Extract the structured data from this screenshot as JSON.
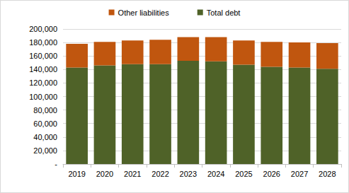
{
  "chart_data": {
    "type": "bar",
    "stacked": true,
    "legend": "top",
    "grid": true,
    "categories": [
      "2019",
      "2020",
      "2021",
      "2022",
      "2023",
      "2024",
      "2025",
      "2026",
      "2027",
      "2028"
    ],
    "series": [
      {
        "name": "Total debt",
        "color": "#4f6228",
        "values": [
          143000,
          146000,
          148000,
          148000,
          153000,
          152000,
          147000,
          144000,
          143000,
          141000
        ]
      },
      {
        "name": "Other liabilities",
        "color": "#c0560f",
        "values": [
          35000,
          35000,
          35000,
          36000,
          35000,
          36000,
          36000,
          37000,
          37000,
          38000
        ]
      }
    ],
    "ylim": [
      0,
      200000
    ],
    "yticks": [
      {
        "value": 0,
        "label": "-"
      },
      {
        "value": 20000,
        "label": "20,000"
      },
      {
        "value": 40000,
        "label": "40,000"
      },
      {
        "value": 60000,
        "label": "60,000"
      },
      {
        "value": 80000,
        "label": "80,000"
      },
      {
        "value": 100000,
        "label": "100,000"
      },
      {
        "value": 120000,
        "label": "120,000"
      },
      {
        "value": 140000,
        "label": "140,000"
      },
      {
        "value": 160000,
        "label": "160,000"
      },
      {
        "value": 180000,
        "label": "180,000"
      },
      {
        "value": 200000,
        "label": "200,000"
      }
    ]
  }
}
